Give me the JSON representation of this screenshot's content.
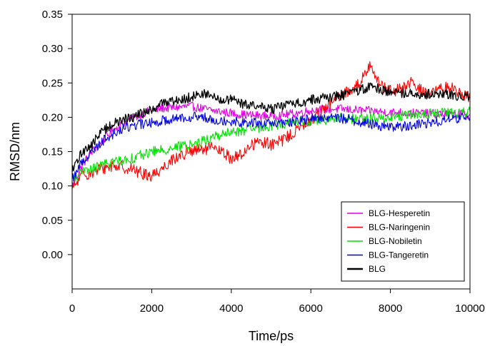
{
  "chart_data": {
    "type": "line",
    "xlabel": "Time/ps",
    "ylabel": "RMSD/nm",
    "xlim": [
      0,
      10000
    ],
    "ylim": [
      -0.05,
      0.35
    ],
    "xticks": [
      0,
      2000,
      4000,
      6000,
      8000,
      10000
    ],
    "yticks": [
      0.0,
      0.05,
      0.1,
      0.15,
      0.2,
      0.25,
      0.3,
      0.35
    ],
    "ytick_labels": [
      "0.00",
      "0.05",
      "0.10",
      "0.15",
      "0.20",
      "0.25",
      "0.30",
      "0.35"
    ],
    "grid": false,
    "legend_position": "bottom-right",
    "series": [
      {
        "name": "BLG-Hesperetin",
        "color": "#e000e0",
        "x": [
          0,
          250,
          500,
          750,
          1000,
          1250,
          1500,
          1750,
          2000,
          2250,
          2500,
          2750,
          3000,
          3250,
          3500,
          3750,
          4000,
          4250,
          4500,
          4750,
          5000,
          5250,
          5500,
          5750,
          6000,
          6250,
          6500,
          6750,
          7000,
          7250,
          7500,
          7750,
          8000,
          8250,
          8500,
          8750,
          9000,
          9250,
          9500,
          9750,
          10000
        ],
        "y": [
          0.1,
          0.13,
          0.15,
          0.165,
          0.18,
          0.19,
          0.198,
          0.205,
          0.21,
          0.213,
          0.214,
          0.215,
          0.216,
          0.213,
          0.21,
          0.208,
          0.206,
          0.204,
          0.203,
          0.202,
          0.202,
          0.203,
          0.205,
          0.207,
          0.21,
          0.211,
          0.212,
          0.212,
          0.211,
          0.21,
          0.209,
          0.208,
          0.207,
          0.207,
          0.206,
          0.206,
          0.205,
          0.205,
          0.204,
          0.204,
          0.204
        ]
      },
      {
        "name": "BLG-Naringenin",
        "color": "#ff0000",
        "x": [
          0,
          250,
          500,
          750,
          1000,
          1250,
          1500,
          1750,
          2000,
          2250,
          2500,
          2750,
          3000,
          3250,
          3500,
          3750,
          4000,
          4250,
          4500,
          4750,
          5000,
          5250,
          5500,
          5750,
          6000,
          6250,
          6500,
          6750,
          7000,
          7250,
          7500,
          7750,
          8000,
          8250,
          8500,
          8750,
          9000,
          9250,
          9500,
          9750,
          10000
        ],
        "y": [
          0.095,
          0.115,
          0.12,
          0.125,
          0.13,
          0.128,
          0.125,
          0.118,
          0.115,
          0.125,
          0.138,
          0.145,
          0.15,
          0.152,
          0.155,
          0.15,
          0.14,
          0.145,
          0.16,
          0.165,
          0.16,
          0.165,
          0.175,
          0.185,
          0.195,
          0.21,
          0.22,
          0.23,
          0.24,
          0.25,
          0.28,
          0.245,
          0.238,
          0.24,
          0.25,
          0.24,
          0.235,
          0.24,
          0.245,
          0.235,
          0.23
        ]
      },
      {
        "name": "BLG-Nobiletin",
        "color": "#00e000",
        "x": [
          0,
          250,
          500,
          750,
          1000,
          1250,
          1500,
          1750,
          2000,
          2250,
          2500,
          2750,
          3000,
          3250,
          3500,
          3750,
          4000,
          4250,
          4500,
          4750,
          5000,
          5250,
          5500,
          5750,
          6000,
          6250,
          6500,
          6750,
          7000,
          7250,
          7500,
          7750,
          8000,
          8250,
          8500,
          8750,
          9000,
          9250,
          9500,
          9750,
          10000
        ],
        "y": [
          0.11,
          0.12,
          0.125,
          0.13,
          0.135,
          0.138,
          0.14,
          0.145,
          0.15,
          0.152,
          0.155,
          0.158,
          0.16,
          0.165,
          0.17,
          0.175,
          0.178,
          0.18,
          0.182,
          0.185,
          0.188,
          0.19,
          0.192,
          0.194,
          0.195,
          0.196,
          0.197,
          0.198,
          0.198,
          0.198,
          0.198,
          0.2,
          0.2,
          0.202,
          0.203,
          0.204,
          0.205,
          0.206,
          0.206,
          0.207,
          0.208
        ]
      },
      {
        "name": "BLG-Tangeretin",
        "color": "#0000e0",
        "x": [
          0,
          250,
          500,
          750,
          1000,
          1250,
          1500,
          1750,
          2000,
          2250,
          2500,
          2750,
          3000,
          3250,
          3500,
          3750,
          4000,
          4250,
          4500,
          4750,
          5000,
          5250,
          5500,
          5750,
          6000,
          6250,
          6500,
          6750,
          7000,
          7250,
          7500,
          7750,
          8000,
          8250,
          8500,
          8750,
          9000,
          9250,
          9500,
          9750,
          10000
        ],
        "y": [
          0.11,
          0.135,
          0.15,
          0.165,
          0.175,
          0.182,
          0.188,
          0.19,
          0.192,
          0.195,
          0.198,
          0.2,
          0.201,
          0.2,
          0.198,
          0.196,
          0.194,
          0.193,
          0.192,
          0.191,
          0.19,
          0.191,
          0.193,
          0.195,
          0.198,
          0.199,
          0.2,
          0.199,
          0.196,
          0.193,
          0.19,
          0.188,
          0.186,
          0.186,
          0.188,
          0.19,
          0.192,
          0.195,
          0.197,
          0.199,
          0.2
        ]
      },
      {
        "name": "BLG",
        "color": "#000000",
        "x": [
          0,
          250,
          500,
          750,
          1000,
          1250,
          1500,
          1750,
          2000,
          2250,
          2500,
          2750,
          3000,
          3250,
          3500,
          3750,
          4000,
          4250,
          4500,
          4750,
          5000,
          5250,
          5500,
          5750,
          6000,
          6250,
          6500,
          6750,
          7000,
          7250,
          7500,
          7750,
          8000,
          8250,
          8500,
          8750,
          9000,
          9250,
          9500,
          9750,
          10000
        ],
        "y": [
          0.12,
          0.15,
          0.16,
          0.18,
          0.19,
          0.195,
          0.2,
          0.205,
          0.21,
          0.22,
          0.225,
          0.225,
          0.23,
          0.235,
          0.23,
          0.225,
          0.225,
          0.22,
          0.218,
          0.215,
          0.212,
          0.215,
          0.22,
          0.222,
          0.225,
          0.228,
          0.23,
          0.232,
          0.235,
          0.24,
          0.245,
          0.24,
          0.238,
          0.236,
          0.235,
          0.234,
          0.234,
          0.233,
          0.232,
          0.232,
          0.23
        ]
      }
    ]
  }
}
